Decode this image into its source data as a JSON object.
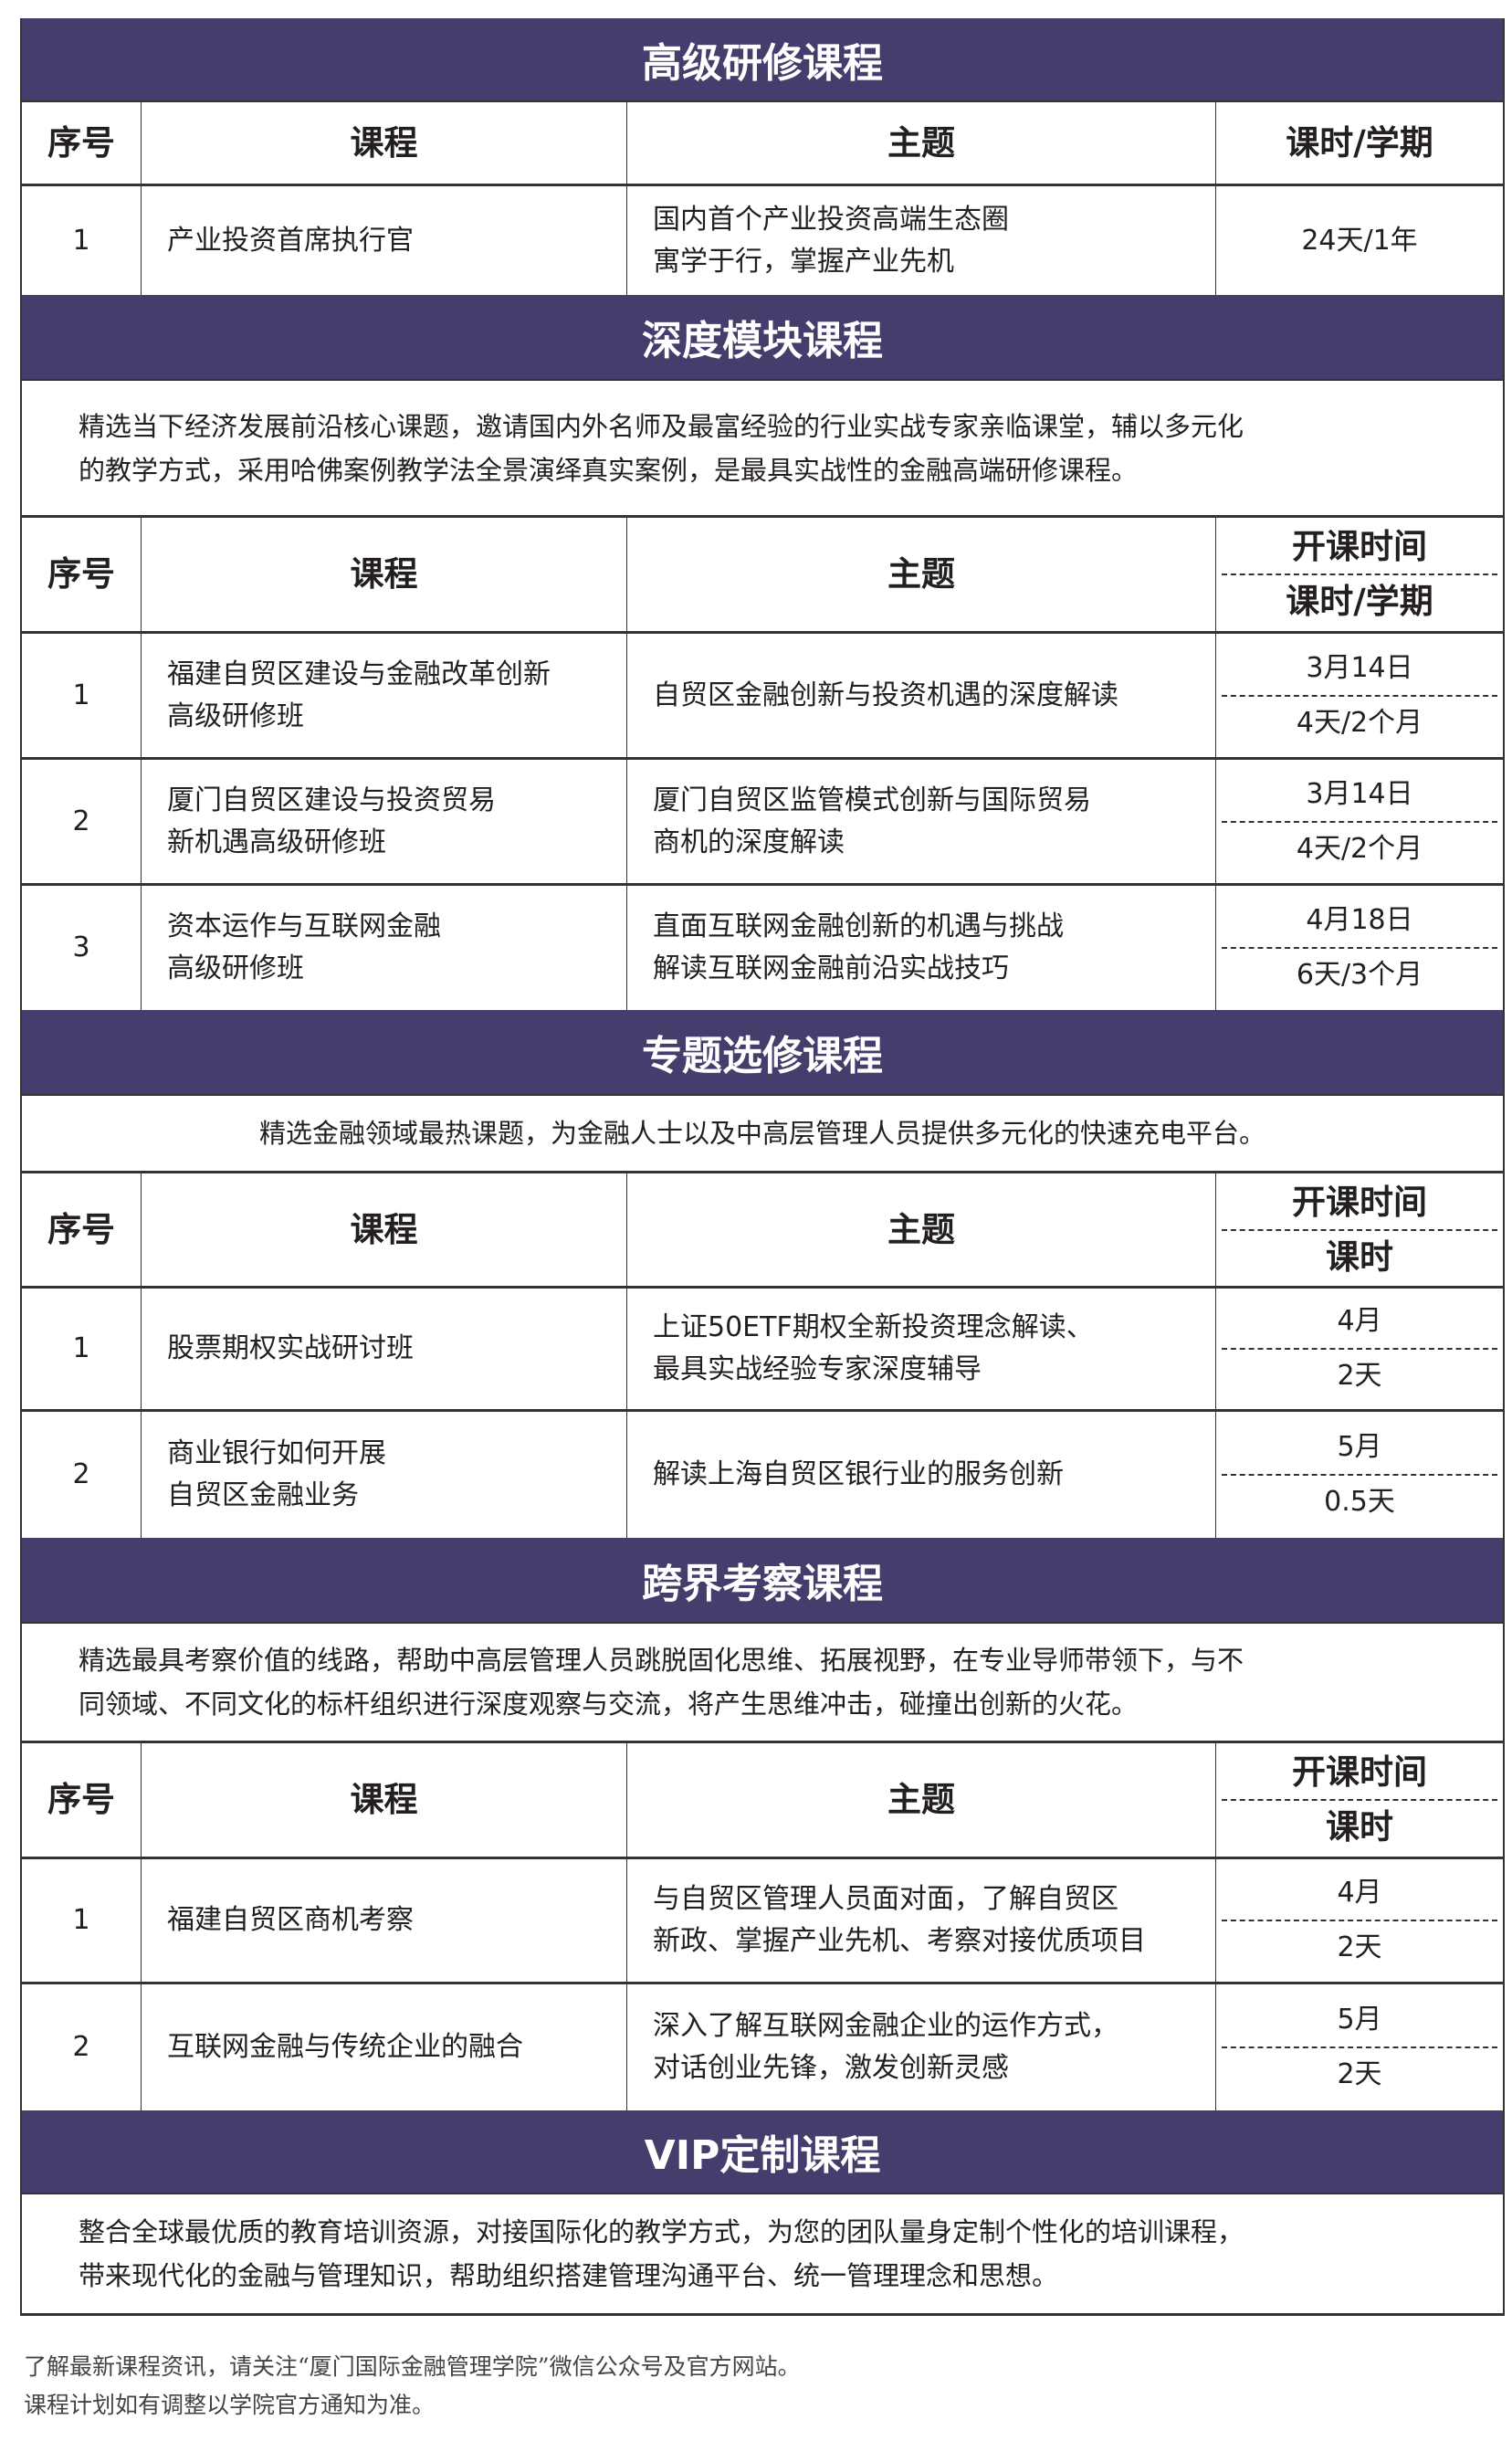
{
  "colors": {
    "header_bg": "#473d6d",
    "header_text": "#ffffff"
  },
  "sections": [
    {
      "title": "高级研修课程",
      "description": "",
      "headers": [
        "序号",
        "课程",
        "主题"
      ],
      "time_header_top": "课时/学期",
      "time_header_bottom": "",
      "rows": [
        {
          "no": "1",
          "course": "产业投资首席执行官",
          "topic": "国内首个产业投资高端生态圈\n寓学于行，掌握产业先机",
          "time_top": "24天/1年",
          "time_bottom": ""
        }
      ]
    },
    {
      "title": "深度模块课程",
      "description": "精选当下经济发展前沿核心课题，邀请国内外名师及最富经验的行业实战专家亲临课堂，辅以多元化\n的教学方式，采用哈佛案例教学法全景演绎真实案例，是最具实战性的金融高端研修课程。",
      "headers": [
        "序号",
        "课程",
        "主题"
      ],
      "time_header_top": "开课时间",
      "time_header_bottom": "课时/学期",
      "rows": [
        {
          "no": "1",
          "course": "福建自贸区建设与金融改革创新\n高级研修班",
          "topic": "自贸区金融创新与投资机遇的深度解读",
          "time_top": "3月14日",
          "time_bottom": "4天/2个月"
        },
        {
          "no": "2",
          "course": "厦门自贸区建设与投资贸易\n新机遇高级研修班",
          "topic": "厦门自贸区监管模式创新与国际贸易\n商机的深度解读",
          "time_top": "3月14日",
          "time_bottom": "4天/2个月"
        },
        {
          "no": "3",
          "course": "资本运作与互联网金融\n高级研修班",
          "topic": "直面互联网金融创新的机遇与挑战\n解读互联网金融前沿实战技巧",
          "time_top": "4月18日",
          "time_bottom": "6天/3个月"
        }
      ]
    },
    {
      "title": "专题选修课程",
      "description": "精选金融领域最热课题，为金融人士以及中高层管理人员提供多元化的快速充电平台。",
      "headers": [
        "序号",
        "课程",
        "主题"
      ],
      "time_header_top": "开课时间",
      "time_header_bottom": "课时",
      "rows": [
        {
          "no": "1",
          "course": "股票期权实战研讨班",
          "topic": "上证50ETF期权全新投资理念解读、\n最具实战经验专家深度辅导",
          "time_top": "4月",
          "time_bottom": "2天"
        },
        {
          "no": "2",
          "course": "商业银行如何开展\n自贸区金融业务",
          "topic": "解读上海自贸区银行业的服务创新",
          "time_top": "5月",
          "time_bottom": "0.5天"
        }
      ]
    },
    {
      "title": "跨界考察课程",
      "description": "精选最具考察价值的线路，帮助中高层管理人员跳脱固化思维、拓展视野，在专业导师带领下，与不\n同领域、不同文化的标杆组织进行深度观察与交流，将产生思维冲击，碰撞出创新的火花。",
      "headers": [
        "序号",
        "课程",
        "主题"
      ],
      "time_header_top": "开课时间",
      "time_header_bottom": "课时",
      "rows": [
        {
          "no": "1",
          "course": "福建自贸区商机考察",
          "topic": "与自贸区管理人员面对面，了解自贸区\n新政、掌握产业先机、考察对接优质项目",
          "time_top": "4月",
          "time_bottom": "2天"
        },
        {
          "no": "2",
          "course": "互联网金融与传统企业的融合",
          "topic": "深入了解互联网金融企业的运作方式，\n对话创业先锋，激发创新灵感",
          "time_top": "5月",
          "time_bottom": "2天"
        }
      ]
    },
    {
      "title": "VIP定制课程",
      "description": "整合全球最优质的教育培训资源，对接国际化的教学方式，为您的团队量身定制个性化的培训课程，\n带来现代化的金融与管理知识，帮助组织搭建管理沟通平台、统一管理理念和思想。",
      "headers": [],
      "time_header_top": "",
      "time_header_bottom": "",
      "rows": []
    }
  ],
  "footer": [
    "了解最新课程资讯，请关注“厦门国际金融管理学院”微信公众号及官方网站。",
    "课程计划如有调整以学院官方通知为准。"
  ]
}
